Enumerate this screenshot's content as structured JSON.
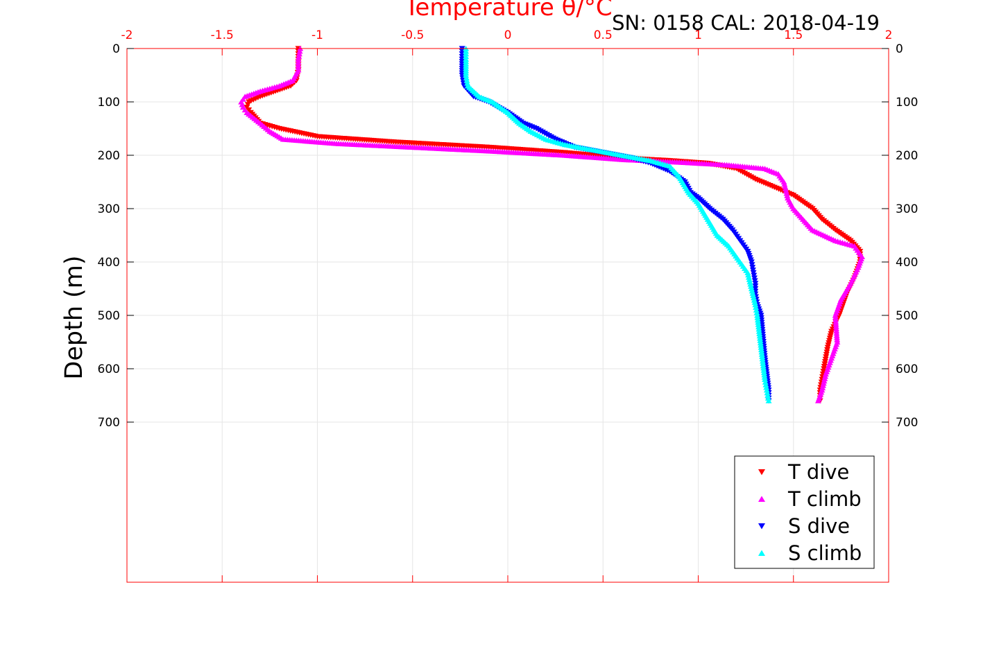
{
  "page": {
    "header": "SN: 0158  CAL: 2018-04-19"
  },
  "chart_data": {
    "type": "scatter",
    "title": "Temperature θ/°C",
    "ylabel": "Depth (m)",
    "xlim": [
      -2,
      2
    ],
    "ylim": [
      0,
      1000
    ],
    "y_reversed": true,
    "x_ticks": [
      "-2",
      "-1.5",
      "-1",
      "-0.5",
      "0",
      "0.5",
      "1",
      "1.5",
      "2"
    ],
    "y_ticks": [
      "0",
      "100",
      "200",
      "300",
      "400",
      "500",
      "600",
      "700"
    ],
    "grid": true,
    "legend_position": "bottom-right",
    "x_axis_color": "#ff0000",
    "series": [
      {
        "name": "T dive",
        "color": "#ff0000",
        "marker": "triangle-down",
        "x": [
          -1.1,
          -1.1,
          -1.1,
          -1.11,
          -1.14,
          -1.22,
          -1.3,
          -1.36,
          -1.37,
          -1.35,
          -1.3,
          -1.2,
          -1.0,
          -0.6,
          -0.1,
          0.3,
          0.6,
          0.85,
          1.05,
          1.2,
          1.3,
          1.4,
          1.5,
          1.6,
          1.65,
          1.72,
          1.8,
          1.85,
          1.85,
          1.82,
          1.78,
          1.74,
          1.7,
          1.68,
          1.66,
          1.65,
          1.64,
          1.64
        ],
        "y": [
          0,
          20,
          40,
          60,
          70,
          80,
          90,
          100,
          110,
          120,
          140,
          150,
          165,
          175,
          185,
          195,
          205,
          210,
          215,
          225,
          245,
          260,
          275,
          300,
          320,
          340,
          360,
          380,
          400,
          430,
          460,
          500,
          530,
          560,
          600,
          620,
          640,
          660
        ]
      },
      {
        "name": "T climb",
        "color": "#ff00ff",
        "marker": "triangle-up",
        "x": [
          -1.09,
          -1.1,
          -1.1,
          -1.13,
          -1.2,
          -1.3,
          -1.38,
          -1.4,
          -1.39,
          -1.37,
          -1.3,
          -1.25,
          -1.18,
          -0.9,
          -0.5,
          -0.1,
          0.3,
          0.6,
          0.9,
          1.15,
          1.35,
          1.42,
          1.45,
          1.47,
          1.5,
          1.55,
          1.6,
          1.72,
          1.82,
          1.86,
          1.84,
          1.8,
          1.75,
          1.72,
          1.73,
          1.7,
          1.67,
          1.65,
          1.63
        ],
        "y": [
          0,
          20,
          40,
          60,
          70,
          80,
          90,
          100,
          110,
          120,
          140,
          155,
          170,
          178,
          185,
          192,
          200,
          208,
          213,
          218,
          225,
          235,
          250,
          280,
          300,
          320,
          340,
          360,
          370,
          390,
          410,
          440,
          470,
          500,
          550,
          580,
          610,
          640,
          660
        ]
      },
      {
        "name": "S dive",
        "color": "#0000ff",
        "marker": "triangle-down",
        "x": [
          -0.24,
          -0.24,
          -0.24,
          -0.23,
          -0.18,
          -0.1,
          0.0,
          0.08,
          0.15,
          0.25,
          0.35,
          0.5,
          0.65,
          0.75,
          0.85,
          0.93,
          0.96,
          1.0,
          1.06,
          1.13,
          1.18,
          1.22,
          1.26,
          1.28,
          1.29,
          1.3,
          1.3,
          1.31,
          1.33,
          1.34,
          1.35,
          1.36,
          1.37,
          1.37
        ],
        "y": [
          0,
          20,
          50,
          70,
          90,
          100,
          120,
          140,
          150,
          170,
          185,
          195,
          205,
          215,
          230,
          250,
          270,
          280,
          300,
          320,
          340,
          360,
          380,
          400,
          420,
          440,
          460,
          480,
          500,
          540,
          580,
          610,
          640,
          660
        ]
      },
      {
        "name": "S climb",
        "color": "#00ffff",
        "marker": "triangle-up",
        "x": [
          -0.22,
          -0.22,
          -0.22,
          -0.21,
          -0.15,
          -0.08,
          0.0,
          0.06,
          0.12,
          0.2,
          0.3,
          0.45,
          0.6,
          0.75,
          0.85,
          0.9,
          0.95,
          1.0,
          1.05,
          1.1,
          1.16,
          1.22,
          1.26,
          1.28,
          1.3,
          1.31,
          1.32,
          1.33,
          1.34,
          1.35,
          1.36,
          1.37
        ],
        "y": [
          0,
          20,
          50,
          70,
          90,
          100,
          120,
          140,
          155,
          170,
          180,
          190,
          200,
          210,
          220,
          240,
          270,
          290,
          320,
          350,
          370,
          400,
          420,
          450,
          480,
          500,
          530,
          560,
          590,
          620,
          640,
          660
        ]
      }
    ]
  }
}
